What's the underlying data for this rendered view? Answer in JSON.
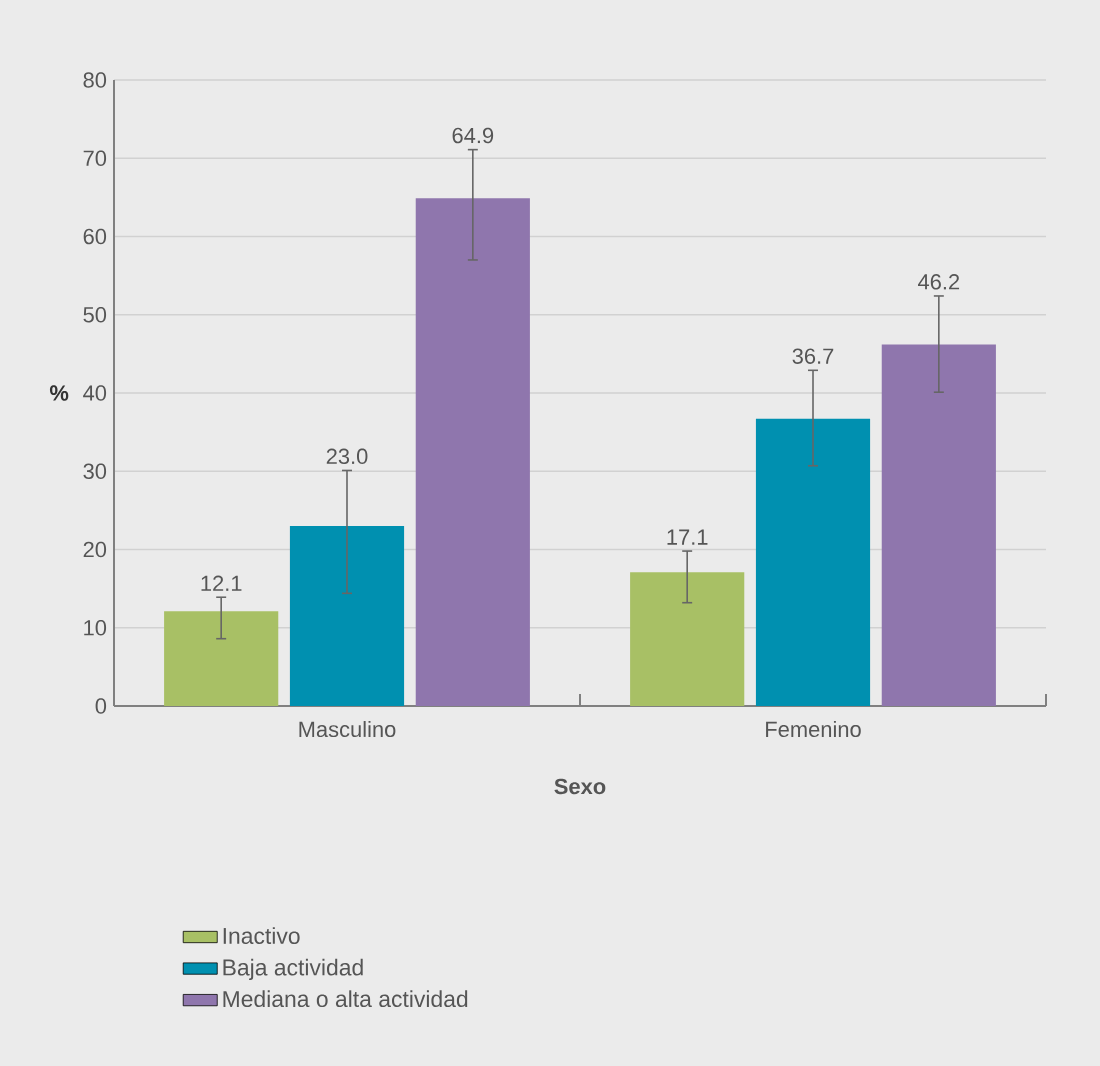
{
  "chart_data": {
    "type": "bar",
    "xlabel": "Sexo",
    "ylabel": "%",
    "categories": [
      "Masculino",
      "Femenino"
    ],
    "series": [
      {
        "name": "Inactivo",
        "color": "#a8c065",
        "values": [
          12.1,
          17.1
        ],
        "value_labels": [
          "12.1",
          "17.1"
        ],
        "errors": [
          [
            8.6,
            13.9
          ],
          [
            13.2,
            19.8
          ]
        ]
      },
      {
        "name": "Baja actividad",
        "color": "#0090b0",
        "values": [
          23.0,
          36.7
        ],
        "value_labels": [
          "23.0",
          "36.7"
        ],
        "errors": [
          [
            14.4,
            30.1
          ],
          [
            30.7,
            42.9
          ]
        ]
      },
      {
        "name": "Mediana o alta actividad",
        "color": "#8f76ad",
        "values": [
          64.9,
          46.2
        ],
        "value_labels": [
          "64.9",
          "46.2"
        ],
        "errors": [
          [
            57.0,
            71.1
          ],
          [
            40.1,
            52.4
          ]
        ]
      }
    ],
    "ylim": [
      0,
      80
    ],
    "yticks": [
      0,
      10,
      20,
      30,
      40,
      50,
      60,
      70,
      80
    ],
    "grid": "y",
    "legend": "bottom left"
  }
}
